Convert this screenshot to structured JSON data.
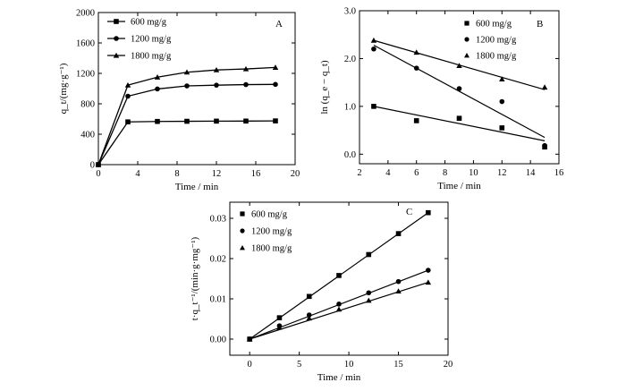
{
  "chart_data": [
    {
      "panel": "A",
      "type": "line",
      "xlabel": "Time / min",
      "ylabel": "q_t/(mg·g⁻¹)",
      "xlim": [
        0,
        20
      ],
      "ylim": [
        0,
        2000
      ],
      "xticks": [
        0,
        4,
        8,
        12,
        16,
        20
      ],
      "yticks": [
        0,
        400,
        800,
        1200,
        1600,
        2000
      ],
      "legend_position": "top-left",
      "series": [
        {
          "name": "600 mg/g",
          "marker": "square",
          "x": [
            0,
            3,
            6,
            9,
            12,
            15,
            18
          ],
          "y": [
            0,
            562,
            568,
            570,
            572,
            573,
            575
          ]
        },
        {
          "name": "1200 mg/g",
          "marker": "circle",
          "x": [
            0,
            3,
            6,
            9,
            12,
            15,
            18
          ],
          "y": [
            0,
            900,
            995,
            1035,
            1045,
            1052,
            1055
          ]
        },
        {
          "name": "1800 mg/g",
          "marker": "triangle",
          "x": [
            0,
            3,
            6,
            9,
            12,
            15,
            18
          ],
          "y": [
            0,
            1045,
            1150,
            1215,
            1245,
            1258,
            1278
          ]
        }
      ]
    },
    {
      "panel": "B",
      "type": "scatter",
      "xlabel": "Time / min",
      "ylabel": "ln (q_e − q_t)",
      "xlim": [
        2,
        16
      ],
      "ylim": [
        -0.2,
        3.0
      ],
      "xticks": [
        2,
        4,
        6,
        8,
        10,
        12,
        14,
        16
      ],
      "yticks": [
        0.0,
        1.0,
        2.0,
        3.0
      ],
      "legend_position": "top-right",
      "series": [
        {
          "name": "600 mg/g",
          "marker": "square",
          "x": [
            3,
            6,
            9,
            12,
            15
          ],
          "y": [
            1.0,
            0.7,
            0.75,
            0.55,
            0.15
          ],
          "fit": [
            [
              3,
              1.0
            ],
            [
              15,
              0.28
            ]
          ]
        },
        {
          "name": "1200 mg/g",
          "marker": "circle",
          "x": [
            3,
            6,
            9,
            12,
            15
          ],
          "y": [
            2.2,
            1.8,
            1.37,
            1.1,
            0.18
          ],
          "fit": [
            [
              3,
              2.28
            ],
            [
              15,
              0.35
            ]
          ]
        },
        {
          "name": "1800 mg/g",
          "marker": "triangle",
          "x": [
            3,
            6,
            9,
            12,
            15
          ],
          "y": [
            2.38,
            2.13,
            1.85,
            1.57,
            1.4
          ],
          "fit": [
            [
              3,
              2.38
            ],
            [
              15,
              1.35
            ]
          ]
        }
      ]
    },
    {
      "panel": "C",
      "type": "scatter",
      "xlabel": "Time / min",
      "ylabel": "t·q_t⁻¹/(min·g·mg⁻¹)",
      "xlim": [
        -2,
        20
      ],
      "ylim": [
        -0.004,
        0.034
      ],
      "xticks": [
        0,
        5,
        10,
        15,
        20
      ],
      "yticks": [
        0.0,
        0.01,
        0.02,
        0.03
      ],
      "legend_position": "top-left",
      "series": [
        {
          "name": "600 mg/g",
          "marker": "square",
          "x": [
            0,
            3,
            6,
            9,
            12,
            15,
            18
          ],
          "y": [
            0,
            0.0053,
            0.0106,
            0.0158,
            0.021,
            0.0262,
            0.0314
          ],
          "fit": [
            [
              0,
              0
            ],
            [
              18,
              0.0314
            ]
          ]
        },
        {
          "name": "1200 mg/g",
          "marker": "circle",
          "x": [
            0,
            3,
            6,
            9,
            12,
            15,
            18
          ],
          "y": [
            0,
            0.0033,
            0.006,
            0.0087,
            0.0115,
            0.0143,
            0.0171
          ],
          "fit": [
            [
              0,
              0
            ],
            [
              18,
              0.0171
            ]
          ]
        },
        {
          "name": "1800 mg/g",
          "marker": "triangle",
          "x": [
            0,
            3,
            6,
            9,
            12,
            15,
            18
          ],
          "y": [
            0,
            0.0029,
            0.0052,
            0.0074,
            0.0096,
            0.0119,
            0.0141
          ],
          "fit": [
            [
              0,
              0
            ],
            [
              18,
              0.0141
            ]
          ]
        }
      ]
    }
  ]
}
